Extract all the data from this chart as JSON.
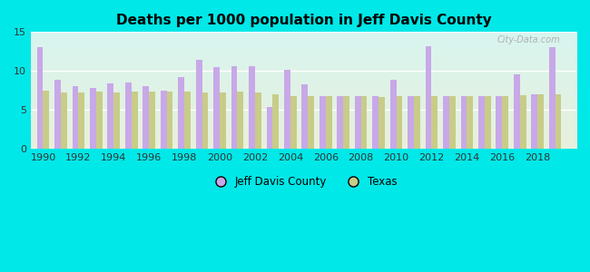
{
  "title": "Deaths per 1000 population in Jeff Davis County",
  "years": [
    1990,
    1991,
    1992,
    1993,
    1994,
    1995,
    1996,
    1997,
    1998,
    1999,
    2000,
    2001,
    2002,
    2003,
    2004,
    2005,
    2006,
    2007,
    2008,
    2009,
    2010,
    2011,
    2012,
    2013,
    2014,
    2015,
    2016,
    2017,
    2018,
    2019
  ],
  "jeff_davis": [
    13.0,
    8.8,
    8.0,
    7.8,
    8.4,
    8.5,
    8.0,
    7.4,
    9.2,
    11.4,
    10.5,
    10.6,
    10.6,
    5.3,
    10.1,
    8.3,
    6.7,
    6.7,
    6.7,
    6.7,
    8.8,
    6.7,
    13.2,
    6.7,
    6.7,
    6.7,
    6.7,
    9.5,
    7.0,
    13.0
  ],
  "texas": [
    7.4,
    7.2,
    7.2,
    7.3,
    7.2,
    7.3,
    7.3,
    7.3,
    7.3,
    7.2,
    7.2,
    7.3,
    7.2,
    7.0,
    6.8,
    6.7,
    6.7,
    6.7,
    6.7,
    6.6,
    6.7,
    6.7,
    6.7,
    6.7,
    6.8,
    6.8,
    6.8,
    6.9,
    7.0,
    7.0
  ],
  "jeff_davis_color": "#c8a8e8",
  "texas_color": "#c8cc88",
  "background_color": "#00e8e8",
  "plot_bg_top": "#d8f5f0",
  "plot_bg_bottom": "#e8f0dc",
  "ylim": [
    0,
    15
  ],
  "yticks": [
    0,
    5,
    10,
    15
  ],
  "legend_jeff_davis": "Jeff Davis County",
  "legend_texas": "Texas",
  "watermark": "City-Data.com",
  "bar_width": 0.35
}
